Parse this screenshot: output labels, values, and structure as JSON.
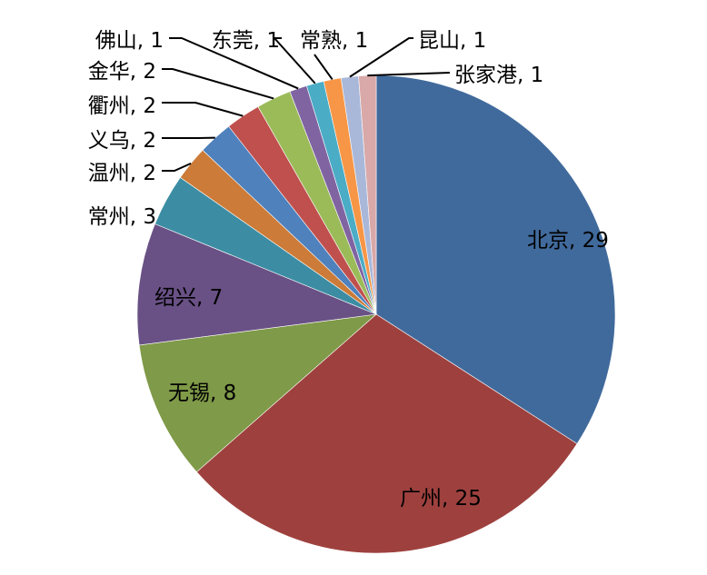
{
  "chart_data": {
    "type": "pie",
    "title": "",
    "start": "top",
    "direction": "clockwise",
    "slices": [
      {
        "label": "北京",
        "value": 29,
        "color": "#416A9C"
      },
      {
        "label": "广州",
        "value": 25,
        "color": "#9E413E"
      },
      {
        "label": "无锡",
        "value": 8,
        "color": "#7F9A48"
      },
      {
        "label": "绍兴",
        "value": 7,
        "color": "#695185"
      },
      {
        "label": "常州",
        "value": 3,
        "color": "#3C8DA3"
      },
      {
        "label": "温州",
        "value": 2,
        "color": "#CC7B38"
      },
      {
        "label": "义乌",
        "value": 2,
        "color": "#4F81BD"
      },
      {
        "label": "衢州",
        "value": 2,
        "color": "#C0504D"
      },
      {
        "label": "金华",
        "value": 2,
        "color": "#9BBB59"
      },
      {
        "label": "佛山",
        "value": 1,
        "color": "#8064A2"
      },
      {
        "label": "东莞",
        "value": 1,
        "color": "#4BACC6"
      },
      {
        "label": "常熟",
        "value": 1,
        "color": "#F79646"
      },
      {
        "label": "昆山",
        "value": 1,
        "color": "#A9B8D9"
      },
      {
        "label": "张家港",
        "value": 1,
        "color": "#D9A8A8"
      }
    ],
    "data_labels": [
      "北京, 29",
      "广州, 25",
      "无锡, 8",
      "绍兴, 7",
      "常州, 3",
      "温州, 2",
      "义乌, 2",
      "衢州, 2",
      "金华, 2",
      "佛山, 1",
      "东莞, 1",
      "常熟, 1",
      "昆山, 1",
      "张家港, 1"
    ]
  }
}
